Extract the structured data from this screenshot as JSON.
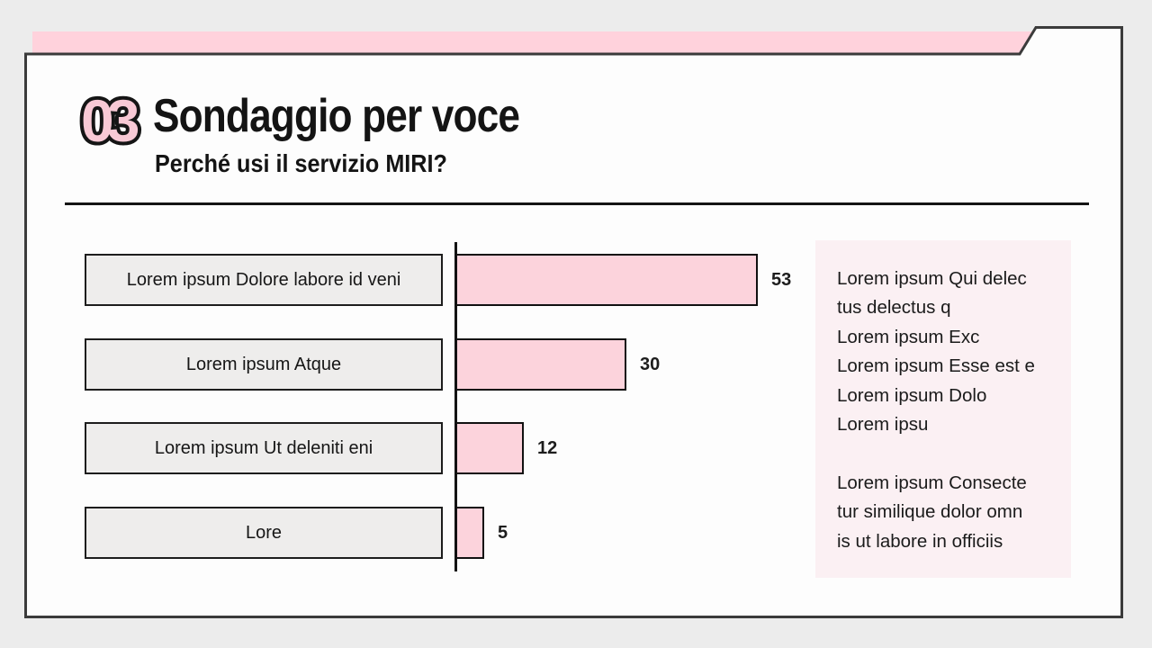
{
  "slide": {
    "number": "03",
    "title": "Sondaggio per voce",
    "subtitle": "Perché usi il servizio MIRI?"
  },
  "chart_data": {
    "type": "bar",
    "orientation": "horizontal",
    "title": "Perché usi il servizio MIRI?",
    "categories": [
      "Lorem ipsum Dolore labore id veni",
      "Lorem ipsum Atque",
      "Lorem ipsum Ut deleniti eni",
      "Lore"
    ],
    "values": [
      53,
      30,
      12,
      5
    ],
    "xlim": [
      0,
      57
    ],
    "grid": false,
    "legend": "none",
    "bar_color": "#fcd3dc",
    "bar_border_color": "#111111",
    "category_box_color": "#eeedec"
  },
  "sidebar": {
    "block1_lines": [
      "Lorem ipsum Qui delec",
      "tus delectus q",
      "Lorem ipsum Exc",
      "Lorem ipsum Esse est e",
      "Lorem ipsum Dolo",
      "Lorem ipsu"
    ],
    "block2_lines": [
      "Lorem ipsum Consecte",
      "tur similique dolor omn",
      "is ut labore in officiis"
    ],
    "background": "#fbf0f3"
  },
  "colors": {
    "page_background": "#ececec",
    "card_background": "#fdfdfd",
    "card_border": "#3b3b3b",
    "accent_strip": "#ffd2dc",
    "slide_number_fill": "#f8c9d5",
    "text": "#161616"
  }
}
